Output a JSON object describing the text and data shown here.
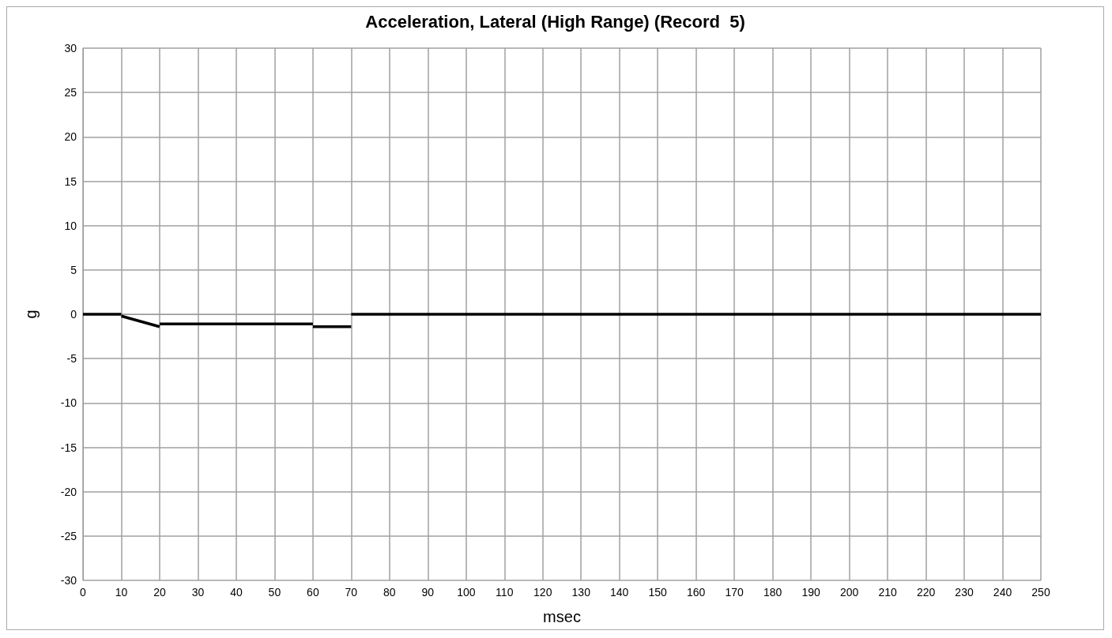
{
  "chart_data": {
    "type": "line",
    "title": "Acceleration, Lateral (High Range) (Record  5)",
    "xlabel": "msec",
    "ylabel": "g",
    "xlim": [
      0,
      250
    ],
    "xticks": [
      0,
      10,
      20,
      30,
      40,
      50,
      60,
      70,
      80,
      90,
      100,
      110,
      120,
      130,
      140,
      150,
      160,
      170,
      180,
      190,
      200,
      210,
      220,
      230,
      240,
      250
    ],
    "ylim": [
      -30,
      30
    ],
    "yticks": [
      -30,
      -25,
      -20,
      -15,
      -10,
      -5,
      0,
      5,
      10,
      15,
      20,
      25,
      30
    ],
    "grid": true,
    "marker": "none",
    "line_style": "solid",
    "series": [
      {
        "color": "#000000",
        "x": [
          0,
          10
        ],
        "values": [
          0,
          0
        ]
      },
      {
        "color": "#000000",
        "x": [
          10,
          20
        ],
        "values": [
          -0.2,
          -1.4
        ]
      },
      {
        "color": "#000000",
        "x": [
          20,
          60
        ],
        "values": [
          -1.1,
          -1.1
        ]
      },
      {
        "color": "#000000",
        "x": [
          60,
          70
        ],
        "values": [
          -1.4,
          -1.4
        ]
      },
      {
        "color": "#000000",
        "x": [
          70,
          250
        ],
        "values": [
          0,
          0
        ]
      }
    ]
  }
}
